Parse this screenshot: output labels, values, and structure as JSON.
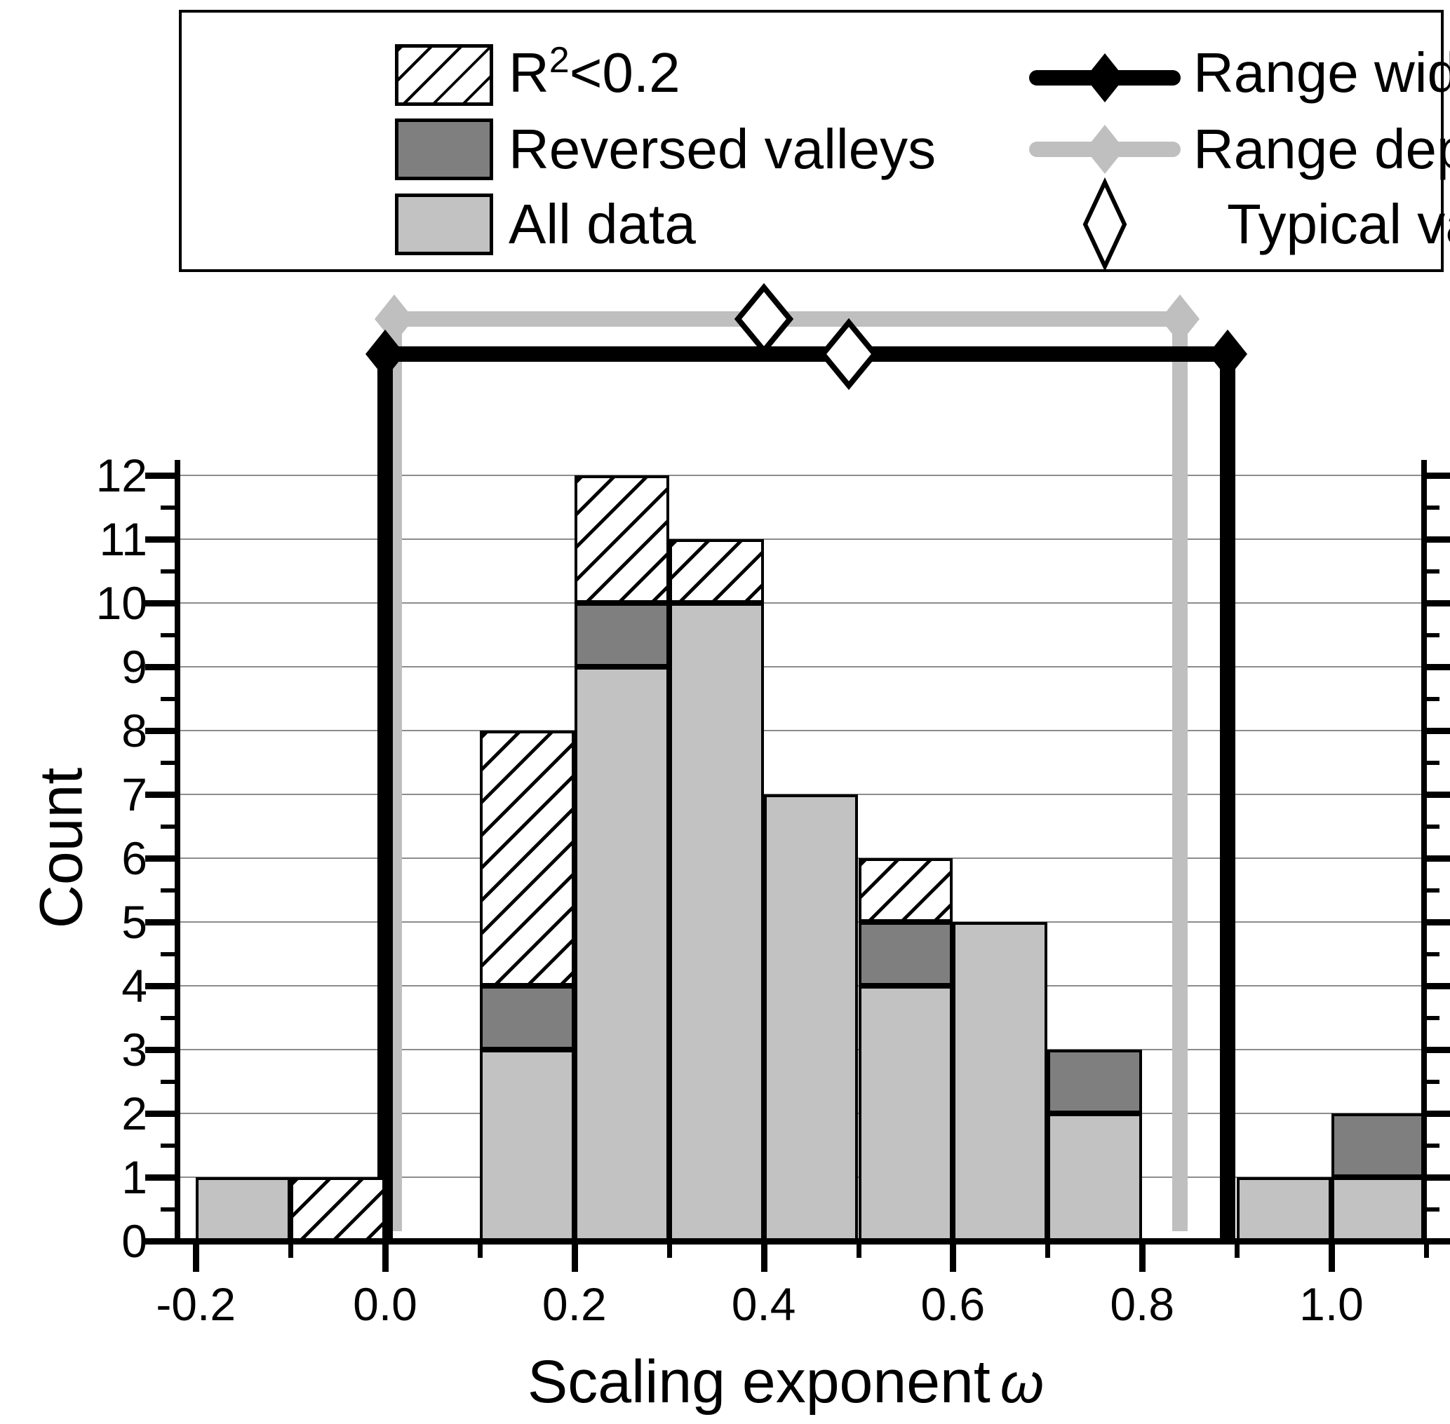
{
  "colors": {
    "all_data": "#c2c2c2",
    "reversed_valleys": "#7f7f7f",
    "hatch_background": "#ffffff",
    "range_width": "#000000",
    "range_depth": "#bfbfbf",
    "grid": "#8c8c8c",
    "axis": "#000000"
  },
  "legend": {
    "items": [
      {
        "id": "r2",
        "base": "R",
        "sup": "2",
        "tail": "<0.2",
        "swatch": "hatched"
      },
      {
        "id": "reversed-valleys",
        "label": "Reversed valleys",
        "swatch": "dark-gray"
      },
      {
        "id": "all-data",
        "label": "All data",
        "swatch": "light-gray"
      },
      {
        "id": "range-width",
        "label": "Range width",
        "marker": "black-line-with-diamond"
      },
      {
        "id": "range-depth",
        "label": "Range depth",
        "marker": "gray-line-with-diamond"
      },
      {
        "id": "typical-value",
        "label": "Typical value",
        "marker": "open-diamond"
      }
    ]
  },
  "chart_data": {
    "type": "bar",
    "subtype": "stacked-histogram",
    "title": "",
    "xlabel": "Scaling exponent ω",
    "xlabel_text": "Scaling exponent",
    "xlabel_symbol": "ω",
    "ylabel": "Count",
    "xlim": [
      -0.22,
      1.1
    ],
    "ylim": [
      0,
      12
    ],
    "grid": "horizontal-major",
    "bin_width": 0.1,
    "bin_starts": [
      -0.2,
      -0.1,
      0.0,
      0.1,
      0.2,
      0.3,
      0.4,
      0.5,
      0.6,
      0.7,
      0.8,
      0.9,
      1.0
    ],
    "series": [
      {
        "id": "all-data",
        "name": "All data",
        "color": "#c2c2c2",
        "values": [
          1,
          0,
          0,
          3,
          9,
          10,
          7,
          4,
          5,
          2,
          0,
          1,
          1
        ]
      },
      {
        "id": "reversed-valleys",
        "name": "Reversed valleys",
        "color": "#7f7f7f",
        "values": [
          0,
          0,
          0,
          1,
          1,
          0,
          0,
          1,
          0,
          1,
          0,
          0,
          1
        ]
      },
      {
        "id": "r2",
        "name": "R2<0.2",
        "style": "hatched",
        "values": [
          0,
          1,
          0,
          4,
          2,
          1,
          0,
          1,
          0,
          0,
          0,
          0,
          0
        ]
      }
    ],
    "bin_totals": [
      1,
      1,
      0,
      8,
      12,
      11,
      7,
      6,
      5,
      3,
      0,
      1,
      2
    ],
    "y_ticks": [
      0,
      1,
      2,
      3,
      4,
      5,
      6,
      7,
      8,
      9,
      10,
      11,
      12
    ],
    "y_minor_tick_step": 0.5,
    "x_major_ticks": [
      -0.2,
      0.0,
      0.2,
      0.4,
      0.6,
      0.8,
      1.0
    ],
    "x_tick_labels": [
      "-0.2",
      "0.0",
      "0.2",
      "0.4",
      "0.6",
      "0.8",
      "1.0"
    ],
    "x_minor_ticks": [
      -0.1,
      0.1,
      0.3,
      0.5,
      0.7,
      0.9,
      1.1
    ],
    "annotations": [
      {
        "name": "range-depth",
        "label": "Range depth",
        "color": "#bfbfbf",
        "row": "upper",
        "start": 0.01,
        "end": 0.84,
        "typical_value": 0.4
      },
      {
        "name": "range-width",
        "label": "Range width",
        "color": "#000000",
        "row": "lower",
        "start": 0.0,
        "end": 0.89,
        "typical_value": 0.49
      }
    ],
    "legend_position": "top"
  }
}
